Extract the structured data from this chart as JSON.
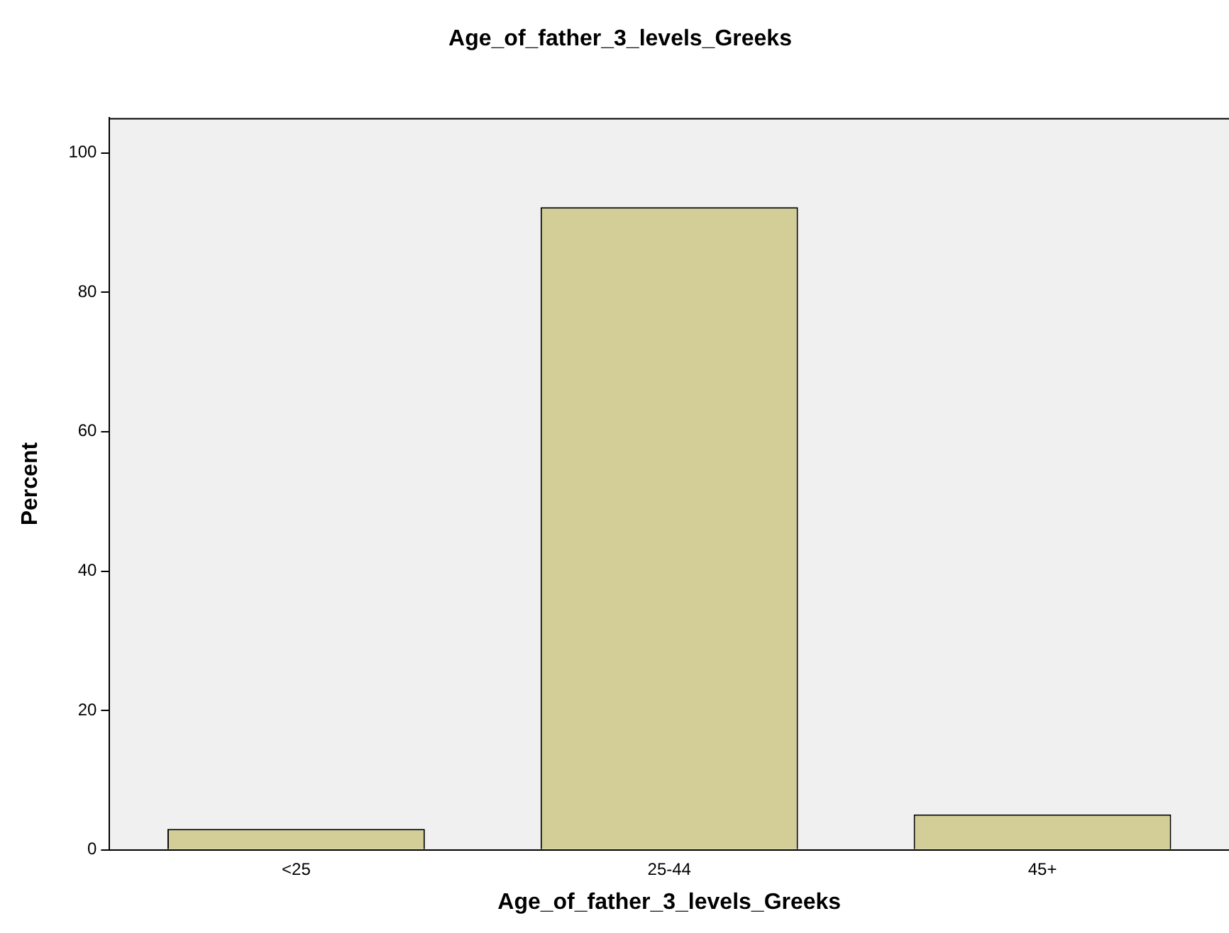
{
  "chart_data": {
    "type": "bar",
    "title": "Age_of_father_3_levels_Greeks",
    "xlabel": "Age_of_father_3_levels_Greeks",
    "ylabel": "Percent",
    "categories": [
      "<25",
      "25-44",
      "45+"
    ],
    "values": [
      3.0,
      92.2,
      5.1
    ],
    "color": "#d3ce97",
    "ylim": [
      0,
      105
    ],
    "yticks": [
      0,
      20,
      40,
      60,
      80,
      100
    ],
    "grid": false,
    "legend": false
  }
}
